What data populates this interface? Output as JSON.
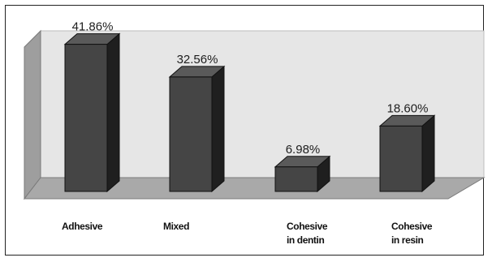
{
  "chart_data": {
    "type": "bar",
    "title": "",
    "xlabel": "",
    "ylabel": "",
    "categories": [
      [
        "Adhesive"
      ],
      [
        "Mixed"
      ],
      [
        "Cohesive",
        "in dentin"
      ],
      [
        "Cohesive",
        "in resin"
      ]
    ],
    "values": [
      41.86,
      32.56,
      6.98,
      18.6
    ],
    "data_labels": [
      "41.86%",
      "32.56%",
      "6.98%",
      "18.60%"
    ],
    "ylim": [
      0,
      45
    ],
    "grid": false,
    "legend": "none",
    "colors": {
      "bar_front": "#454545",
      "bar_side": "#1f1f1f",
      "bar_top": "#5a5a5a",
      "back_wall": "#e6e6e6",
      "side_wall": "#9e9e9e",
      "floor": "#a9a9a9"
    }
  }
}
